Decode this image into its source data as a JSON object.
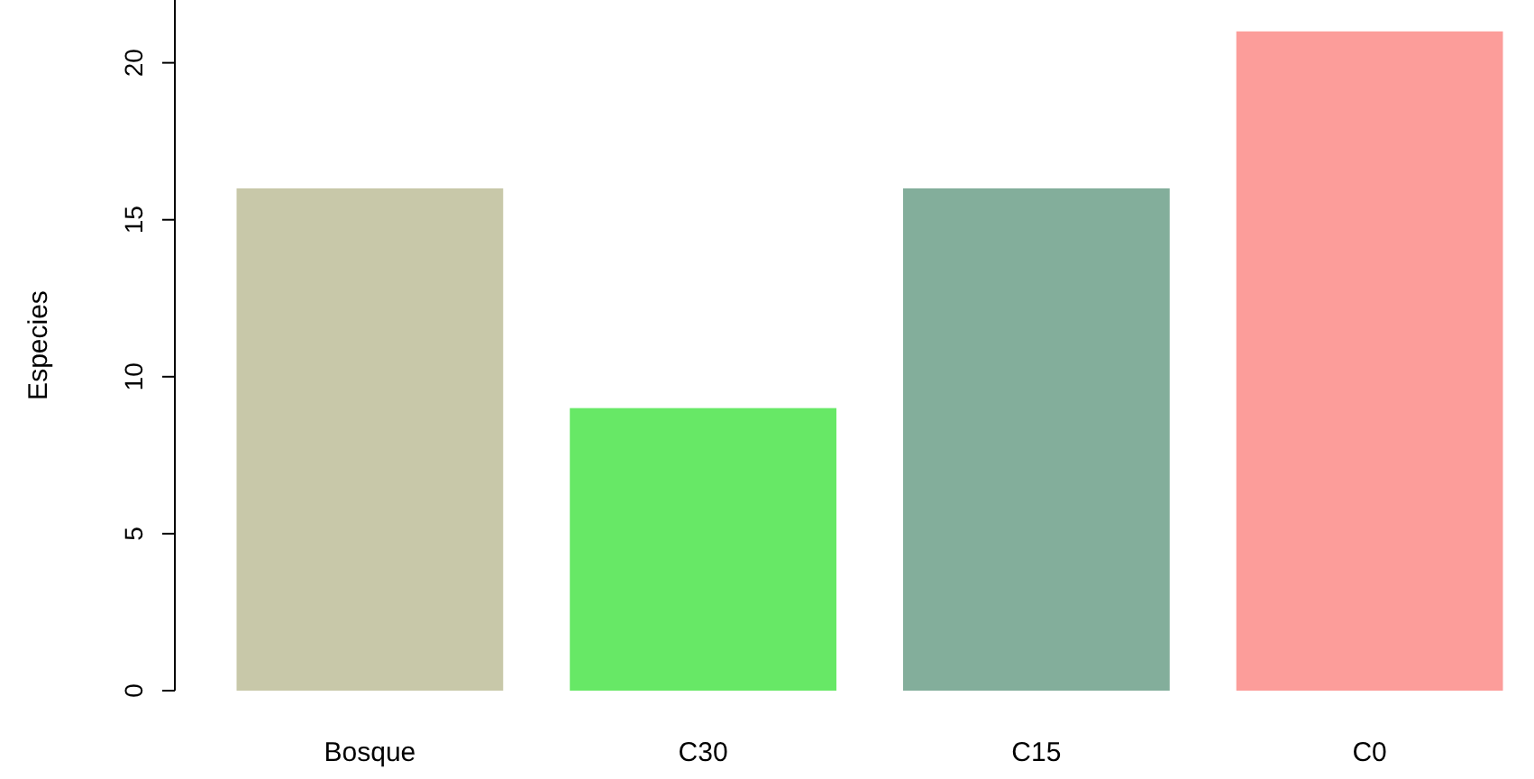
{
  "chart_data": {
    "type": "bar",
    "ylabel": "Especies",
    "categories": [
      "Bosque",
      "C30",
      "C15",
      "C0"
    ],
    "values": [
      16,
      9,
      16,
      21
    ],
    "colors": [
      "#c8c8a9",
      "#67e866",
      "#83ae9b",
      "#fc9d9a"
    ],
    "ylim": [
      0,
      22
    ],
    "yticks": [
      0,
      5,
      10,
      15,
      20
    ],
    "grid": false
  }
}
